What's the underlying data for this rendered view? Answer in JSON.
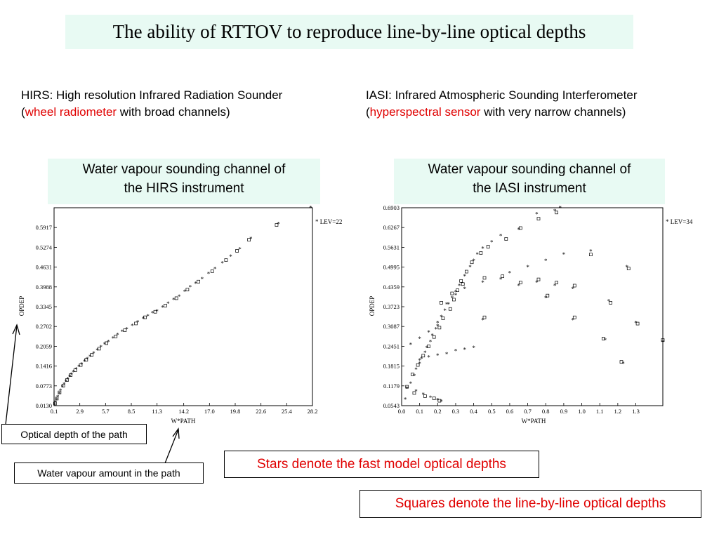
{
  "slide": {
    "title": "The ability of RTTOV to reproduce line-by-line optical depths",
    "hirs_desc": {
      "line1": "HIRS: High resolution Infrared Radiation Sounder",
      "open": "(",
      "highlight": "wheel radiometer",
      "rest": " with broad channels)"
    },
    "iasi_desc": {
      "line1": "IASI: Infrared Atmospheric Sounding Interferometer",
      "open": "(",
      "highlight": "hyperspectral sensor",
      "rest": " with very narrow channels)"
    },
    "hirs_box": {
      "line1": "Water vapour sounding channel of",
      "line2": "the HIRS instrument"
    },
    "iasi_box": {
      "line1": "Water vapour sounding channel of",
      "line2": "the IASI instrument"
    },
    "note_optical_depth": "Optical depth of the path",
    "note_water_vapour": "Water vapour amount in the path",
    "note_stars": "Stars denote the fast model optical depths",
    "note_squares": "Squares denote the line-by-line optical depths",
    "colors": {
      "box_fill": "#e8faf3",
      "highlight": "#e00000"
    },
    "icons": {
      "star_marker": "asterisk",
      "square_marker": "open-square",
      "arrow": "arrow-up"
    }
  },
  "chart_data": [
    {
      "type": "scatter",
      "xlabel": "W*PATH",
      "ylabel": "OPDEP",
      "legend": "* LEV=22",
      "legend_placement": "top-right outside",
      "xlim": [
        0.1,
        28.2
      ],
      "ylim": [
        0.013,
        0.656
      ],
      "x_ticks": [
        "0.1",
        "2.9",
        "5.7",
        "8.5",
        "11.3",
        "14.2",
        "17.0",
        "19.8",
        "22.6",
        "25.4",
        "28.2"
      ],
      "y_ticks": [
        "0.0130",
        "0.0773",
        "0.1416",
        "0.2059",
        "0.2702",
        "0.3345",
        "0.3988",
        "0.4631",
        "0.5274",
        "0.5917"
      ],
      "series": [
        {
          "marker": "star",
          "points": [
            [
              0.15,
              0.016
            ],
            [
              0.25,
              0.024
            ],
            [
              0.35,
              0.032
            ],
            [
              0.5,
              0.042
            ],
            [
              0.65,
              0.052
            ],
            [
              0.8,
              0.062
            ],
            [
              1.0,
              0.073
            ],
            [
              1.2,
              0.083
            ],
            [
              1.4,
              0.092
            ],
            [
              1.6,
              0.1
            ],
            [
              1.8,
              0.108
            ],
            [
              2.0,
              0.115
            ],
            [
              2.2,
              0.122
            ],
            [
              2.5,
              0.131
            ],
            [
              2.8,
              0.14
            ],
            [
              3.1,
              0.148
            ],
            [
              3.4,
              0.157
            ],
            [
              3.7,
              0.165
            ],
            [
              4.0,
              0.173
            ],
            [
              4.4,
              0.183
            ],
            [
              4.8,
              0.193
            ],
            [
              5.2,
              0.203
            ],
            [
              5.6,
              0.212
            ],
            [
              6.0,
              0.221
            ],
            [
              6.5,
              0.232
            ],
            [
              7.0,
              0.243
            ],
            [
              7.5,
              0.253
            ],
            [
              8.0,
              0.262
            ],
            [
              8.6,
              0.273
            ],
            [
              9.2,
              0.284
            ],
            [
              9.8,
              0.296
            ],
            [
              10.3,
              0.304
            ],
            [
              10.8,
              0.314
            ],
            [
              11.3,
              0.32
            ],
            [
              11.9,
              0.332
            ],
            [
              12.5,
              0.345
            ],
            [
              13.1,
              0.357
            ],
            [
              13.7,
              0.368
            ],
            [
              14.3,
              0.384
            ],
            [
              14.9,
              0.398
            ],
            [
              15.5,
              0.41
            ],
            [
              16.2,
              0.425
            ],
            [
              16.9,
              0.442
            ],
            [
              17.6,
              0.458
            ],
            [
              18.4,
              0.476
            ],
            [
              19.3,
              0.498
            ],
            [
              20.3,
              0.522
            ],
            [
              21.5,
              0.556
            ],
            [
              24.5,
              0.604
            ],
            [
              28.0,
              0.656
            ]
          ]
        },
        {
          "marker": "square",
          "points": [
            [
              0.2,
              0.02
            ],
            [
              0.4,
              0.036
            ],
            [
              0.7,
              0.056
            ],
            [
              1.1,
              0.078
            ],
            [
              1.5,
              0.096
            ],
            [
              1.9,
              0.112
            ],
            [
              2.4,
              0.128
            ],
            [
              3.0,
              0.145
            ],
            [
              3.6,
              0.162
            ],
            [
              4.2,
              0.178
            ],
            [
              5.0,
              0.198
            ],
            [
              5.8,
              0.216
            ],
            [
              6.8,
              0.238
            ],
            [
              7.8,
              0.258
            ],
            [
              9.0,
              0.28
            ],
            [
              10.0,
              0.3
            ],
            [
              11.1,
              0.318
            ],
            [
              12.2,
              0.338
            ],
            [
              13.4,
              0.362
            ],
            [
              14.6,
              0.39
            ],
            [
              15.8,
              0.416
            ],
            [
              17.3,
              0.45
            ],
            [
              18.8,
              0.486
            ],
            [
              20.0,
              0.516
            ],
            [
              21.3,
              0.552
            ],
            [
              24.3,
              0.6
            ]
          ]
        }
      ]
    },
    {
      "type": "scatter",
      "xlabel": "W*PATH",
      "ylabel": "OPDEP",
      "legend": "* LEV=34",
      "legend_placement": "top-right outside",
      "xlim": [
        0.0,
        1.45
      ],
      "ylim": [
        0.0543,
        0.6903
      ],
      "x_ticks": [
        "0.0",
        "0.1",
        "0.2",
        "0.3",
        "0.4",
        "0.5",
        "0.6",
        "0.7",
        "0.8",
        "0.9",
        "1.0",
        "1.1",
        "1.2",
        "1.3"
      ],
      "y_ticks": [
        "0.0543",
        "0.1179",
        "0.1815",
        "0.2451",
        "0.3087",
        "0.3723",
        "0.4359",
        "0.4995",
        "0.5631",
        "0.6267",
        "0.6903"
      ],
      "series": [
        {
          "marker": "star",
          "points": [
            [
              0.02,
              0.075
            ],
            [
              0.03,
              0.11
            ],
            [
              0.05,
              0.125
            ],
            [
              0.07,
              0.15
            ],
            [
              0.08,
              0.17
            ],
            [
              0.1,
              0.19
            ],
            [
              0.11,
              0.205
            ],
            [
              0.13,
              0.225
            ],
            [
              0.14,
              0.24
            ],
            [
              0.16,
              0.26
            ],
            [
              0.17,
              0.28
            ],
            [
              0.19,
              0.3
            ],
            [
              0.2,
              0.32
            ],
            [
              0.22,
              0.34
            ],
            [
              0.24,
              0.36
            ],
            [
              0.26,
              0.38
            ],
            [
              0.28,
              0.4
            ],
            [
              0.3,
              0.42
            ],
            [
              0.32,
              0.44
            ],
            [
              0.35,
              0.47
            ],
            [
              0.38,
              0.5
            ],
            [
              0.4,
              0.52
            ],
            [
              0.42,
              0.54
            ],
            [
              0.45,
              0.56
            ],
            [
              0.5,
              0.58
            ],
            [
              0.55,
              0.6
            ],
            [
              0.65,
              0.62
            ],
            [
              0.75,
              0.67
            ],
            [
              0.85,
              0.68
            ],
            [
              0.88,
              0.69
            ],
            [
              0.05,
              0.25
            ],
            [
              0.1,
              0.27
            ],
            [
              0.15,
              0.29
            ],
            [
              0.2,
              0.31
            ],
            [
              0.25,
              0.38
            ],
            [
              0.3,
              0.41
            ],
            [
              0.35,
              0.43
            ],
            [
              0.45,
              0.45
            ],
            [
              0.55,
              0.46
            ],
            [
              0.65,
              0.44
            ],
            [
              0.75,
              0.45
            ],
            [
              0.85,
              0.44
            ],
            [
              0.95,
              0.43
            ],
            [
              0.6,
              0.48
            ],
            [
              0.7,
              0.5
            ],
            [
              0.8,
              0.52
            ],
            [
              0.9,
              0.54
            ],
            [
              1.05,
              0.55
            ],
            [
              1.15,
              0.39
            ],
            [
              1.25,
              0.5
            ],
            [
              1.3,
              0.32
            ],
            [
              1.13,
              0.265
            ],
            [
              1.23,
              0.19
            ],
            [
              0.95,
              0.33
            ],
            [
              0.8,
              0.4
            ],
            [
              0.03,
              0.11
            ],
            [
              0.08,
              0.1
            ],
            [
              0.12,
              0.09
            ],
            [
              0.16,
              0.08
            ],
            [
              0.2,
              0.072
            ],
            [
              0.22,
              0.068
            ],
            [
              0.1,
              0.2
            ],
            [
              0.15,
              0.21
            ],
            [
              0.2,
              0.215
            ],
            [
              0.25,
              0.22
            ],
            [
              0.3,
              0.23
            ],
            [
              0.35,
              0.235
            ],
            [
              0.4,
              0.24
            ],
            [
              0.45,
              0.33
            ],
            [
              1.45,
              0.258
            ]
          ]
        },
        {
          "marker": "square",
          "points": [
            [
              0.03,
              0.115
            ],
            [
              0.06,
              0.155
            ],
            [
              0.09,
              0.185
            ],
            [
              0.12,
              0.215
            ],
            [
              0.15,
              0.245
            ],
            [
              0.18,
              0.275
            ],
            [
              0.21,
              0.305
            ],
            [
              0.23,
              0.335
            ],
            [
              0.27,
              0.365
            ],
            [
              0.29,
              0.395
            ],
            [
              0.31,
              0.425
            ],
            [
              0.33,
              0.455
            ],
            [
              0.36,
              0.485
            ],
            [
              0.39,
              0.515
            ],
            [
              0.44,
              0.545
            ],
            [
              0.48,
              0.565
            ],
            [
              0.58,
              0.59
            ],
            [
              0.66,
              0.625
            ],
            [
              0.76,
              0.655
            ],
            [
              0.86,
              0.675
            ],
            [
              0.22,
              0.385
            ],
            [
              0.28,
              0.415
            ],
            [
              0.34,
              0.445
            ],
            [
              0.46,
              0.465
            ],
            [
              0.56,
              0.47
            ],
            [
              0.66,
              0.45
            ],
            [
              0.76,
              0.46
            ],
            [
              0.86,
              0.45
            ],
            [
              0.96,
              0.44
            ],
            [
              1.05,
              0.54
            ],
            [
              1.16,
              0.385
            ],
            [
              1.26,
              0.495
            ],
            [
              1.31,
              0.318
            ],
            [
              1.12,
              0.27
            ],
            [
              1.22,
              0.195
            ],
            [
              0.96,
              0.338
            ],
            [
              0.81,
              0.408
            ],
            [
              0.46,
              0.338
            ],
            [
              1.45,
              0.265
            ],
            [
              0.07,
              0.095
            ],
            [
              0.13,
              0.085
            ],
            [
              0.18,
              0.078
            ],
            [
              0.21,
              0.07
            ]
          ]
        }
      ]
    }
  ]
}
